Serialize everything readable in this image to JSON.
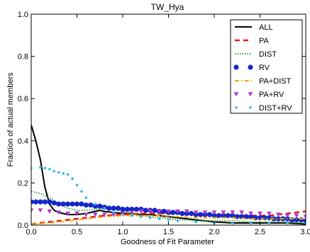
{
  "chart_data": {
    "type": "line",
    "title": "TW_Hya",
    "xlabel": "Goodness of Fit Parameter",
    "ylabel": "Fraction of actual members",
    "xlim": [
      0.0,
      3.0
    ],
    "ylim": [
      0.0,
      1.0
    ],
    "xticks": [
      0.0,
      0.5,
      1.0,
      1.5,
      2.0,
      2.5,
      3.0
    ],
    "xtick_labels": [
      "0.0",
      "0.5",
      "1.0",
      "1.5",
      "2.0",
      "2.5",
      "3.0"
    ],
    "yticks": [
      0.0,
      0.2,
      0.4,
      0.6,
      0.8,
      1.0
    ],
    "ytick_labels": [
      "0.0",
      "0.2",
      "0.4",
      "0.6",
      "0.8",
      "1.0"
    ],
    "grid": false,
    "legend_position": "top-right",
    "series": [
      {
        "name": "ALL",
        "style": "solid",
        "color": "#000000",
        "x": [
          0.0,
          0.05,
          0.1,
          0.15,
          0.2,
          0.25,
          0.3,
          0.35,
          0.4,
          0.5,
          0.6,
          0.7,
          0.75,
          0.8,
          0.9,
          1.0,
          1.1,
          1.2,
          1.3,
          1.4,
          1.5,
          1.6,
          1.7,
          1.8,
          1.9,
          2.0,
          2.2,
          2.4,
          2.6,
          2.8,
          3.0
        ],
        "y": [
          0.475,
          0.4,
          0.31,
          0.18,
          0.1,
          0.07,
          0.06,
          0.055,
          0.05,
          0.05,
          0.055,
          0.065,
          0.07,
          0.065,
          0.06,
          0.055,
          0.055,
          0.05,
          0.05,
          0.045,
          0.04,
          0.035,
          0.03,
          0.025,
          0.02,
          0.015,
          0.01,
          0.01,
          0.01,
          0.01,
          0.005
        ]
      },
      {
        "name": "PA",
        "style": "dashed",
        "color": "#e8141c",
        "x": [
          0.0,
          0.2,
          0.4,
          0.6,
          0.8,
          1.0,
          1.2,
          1.4,
          1.6,
          1.8,
          2.0,
          2.2,
          2.4,
          2.6,
          2.8,
          3.0
        ],
        "y": [
          0.005,
          0.015,
          0.025,
          0.035,
          0.045,
          0.05,
          0.055,
          0.055,
          0.055,
          0.05,
          0.05,
          0.045,
          0.045,
          0.045,
          0.055,
          0.065
        ]
      },
      {
        "name": "DIST",
        "style": "dotted",
        "color": "#33a02c",
        "x": [
          0.0,
          0.1,
          0.2,
          0.3,
          0.4,
          0.5,
          0.6,
          0.7,
          0.8,
          0.9,
          1.0,
          1.1,
          1.2,
          1.3,
          1.4,
          1.5,
          1.6,
          1.7,
          1.8,
          1.9,
          2.0,
          2.2,
          2.4,
          2.6,
          2.8,
          3.0
        ],
        "y": [
          0.16,
          0.15,
          0.13,
          0.1,
          0.08,
          0.07,
          0.07,
          0.075,
          0.08,
          0.075,
          0.065,
          0.055,
          0.045,
          0.04,
          0.035,
          0.03,
          0.025,
          0.025,
          0.02,
          0.02,
          0.02,
          0.02,
          0.015,
          0.015,
          0.015,
          0.01
        ]
      },
      {
        "name": "RV",
        "style": "large-dots",
        "color": "#1428c8",
        "x": [
          0.0,
          0.05,
          0.1,
          0.15,
          0.2,
          0.25,
          0.3,
          0.35,
          0.4,
          0.45,
          0.5,
          0.55,
          0.6,
          0.65,
          0.7,
          0.75,
          0.8,
          0.85,
          0.9,
          0.95,
          1.0,
          1.05,
          1.1,
          1.15,
          1.2,
          1.25,
          1.3,
          1.35,
          1.4,
          1.45,
          1.5,
          1.55,
          1.6,
          1.65,
          1.7,
          1.75,
          1.8,
          1.85,
          1.9,
          1.95,
          2.0,
          2.05,
          2.1,
          2.15,
          2.2,
          2.25,
          2.3,
          2.35,
          2.4,
          2.45,
          2.5,
          2.55,
          2.6,
          2.65,
          2.7,
          2.75,
          2.8,
          2.85,
          2.9,
          2.95,
          3.0
        ],
        "y": [
          0.11,
          0.11,
          0.11,
          0.11,
          0.11,
          0.105,
          0.1,
          0.1,
          0.1,
          0.1,
          0.1,
          0.1,
          0.095,
          0.095,
          0.09,
          0.09,
          0.085,
          0.08,
          0.08,
          0.08,
          0.075,
          0.075,
          0.075,
          0.075,
          0.075,
          0.07,
          0.07,
          0.07,
          0.065,
          0.065,
          0.06,
          0.06,
          0.06,
          0.055,
          0.055,
          0.055,
          0.05,
          0.05,
          0.05,
          0.05,
          0.045,
          0.045,
          0.045,
          0.045,
          0.045,
          0.04,
          0.04,
          0.04,
          0.04,
          0.035,
          0.035,
          0.035,
          0.035,
          0.03,
          0.03,
          0.03,
          0.03,
          0.025,
          0.025,
          0.025,
          0.02
        ]
      },
      {
        "name": "PA+DIST",
        "style": "dashdot",
        "color": "#f2a900",
        "x": [
          0.0,
          0.2,
          0.4,
          0.6,
          0.8,
          1.0,
          1.2,
          1.4,
          1.6,
          1.8,
          2.0,
          2.2,
          2.4,
          2.6,
          2.8,
          3.0
        ],
        "y": [
          0.005,
          0.01,
          0.02,
          0.03,
          0.04,
          0.045,
          0.045,
          0.045,
          0.04,
          0.035,
          0.035,
          0.035,
          0.03,
          0.03,
          0.03,
          0.03
        ]
      },
      {
        "name": "PA+RV",
        "style": "triangles",
        "color": "#b03cc8",
        "x": [
          0.0,
          0.1,
          0.2,
          0.3,
          0.4,
          0.5,
          0.6,
          0.7,
          0.8,
          0.9,
          1.0,
          1.1,
          1.2,
          1.3,
          1.4,
          1.5,
          1.6,
          1.7,
          1.8,
          1.9,
          2.0,
          2.1,
          2.2,
          2.3,
          2.4,
          2.5,
          2.6,
          2.7,
          2.8,
          2.9,
          3.0
        ],
        "y": [
          0.07,
          0.07,
          0.065,
          0.06,
          0.055,
          0.055,
          0.05,
          0.05,
          0.05,
          0.05,
          0.055,
          0.06,
          0.065,
          0.065,
          0.065,
          0.065,
          0.065,
          0.065,
          0.06,
          0.06,
          0.06,
          0.06,
          0.06,
          0.06,
          0.055,
          0.055,
          0.055,
          0.05,
          0.045,
          0.045,
          0.04
        ]
      },
      {
        "name": "DIST+RV",
        "style": "sparse-dots",
        "color": "#30b8e8",
        "x": [
          0.0,
          0.1,
          0.15,
          0.2,
          0.25,
          0.3,
          0.35,
          0.4,
          0.45,
          0.5,
          0.55,
          0.6,
          0.7,
          0.8,
          0.9,
          1.0,
          1.1,
          1.2,
          1.3,
          1.4,
          1.5,
          1.6,
          1.8,
          2.0,
          2.2,
          2.4,
          2.6,
          2.8,
          3.0
        ],
        "y": [
          0.27,
          0.275,
          0.27,
          0.265,
          0.255,
          0.25,
          0.245,
          0.24,
          0.22,
          0.19,
          0.16,
          0.13,
          0.1,
          0.08,
          0.06,
          0.05,
          0.045,
          0.04,
          0.035,
          0.03,
          0.025,
          0.02,
          0.015,
          0.01,
          0.01,
          0.01,
          0.01,
          0.01,
          0.01
        ]
      }
    ]
  }
}
